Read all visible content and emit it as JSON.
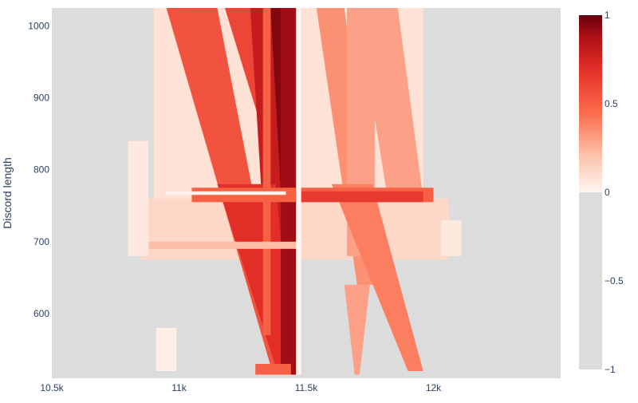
{
  "chart_data": {
    "type": "heatmap",
    "title": "",
    "xlabel": "",
    "ylabel": "Discord length",
    "x_range": [
      10500,
      12500
    ],
    "y_range": [
      510,
      1025
    ],
    "x_ticks": [
      {
        "value": 10500,
        "label": "10.5k"
      },
      {
        "value": 11000,
        "label": "11k"
      },
      {
        "value": 11500,
        "label": "11.5k"
      },
      {
        "value": 12000,
        "label": "12k"
      }
    ],
    "y_ticks": [
      {
        "value": 600,
        "label": "600"
      },
      {
        "value": 700,
        "label": "700"
      },
      {
        "value": 800,
        "label": "800"
      },
      {
        "value": 900,
        "label": "900"
      },
      {
        "value": 1000,
        "label": "1000"
      }
    ],
    "colorbar": {
      "range": [
        -1,
        1
      ],
      "ticks": [
        {
          "value": 1,
          "label": "1"
        },
        {
          "value": 0.5,
          "label": "0.5"
        },
        {
          "value": 0,
          "label": "0"
        },
        {
          "value": -0.5,
          "label": "−0.5"
        },
        {
          "value": -1,
          "label": "−1"
        }
      ],
      "negative_color": "#dcdcdc",
      "zero_color": "#fff5f0",
      "max_color": "#67000d"
    },
    "background_value": -1,
    "regions": [
      {
        "type": "rect",
        "x0": 10900,
        "x1": 11480,
        "y0": 680,
        "y1": 1025,
        "value": 0.08
      },
      {
        "type": "rect",
        "x0": 11480,
        "x1": 11960,
        "y0": 680,
        "y1": 1025,
        "value": 0.08
      },
      {
        "type": "rect",
        "x0": 10850,
        "x1": 12060,
        "y0": 675,
        "y1": 760,
        "value": 0.12
      },
      {
        "type": "poly",
        "points": [
          [
            10950,
            1025
          ],
          [
            11150,
            1025
          ],
          [
            11430,
            515
          ],
          [
            11370,
            515
          ]
        ],
        "value": 0.55
      },
      {
        "type": "poly",
        "points": [
          [
            11180,
            1025
          ],
          [
            11320,
            1025
          ],
          [
            11470,
            760
          ],
          [
            11410,
            760
          ]
        ],
        "value": 0.6
      },
      {
        "type": "poly",
        "points": [
          [
            11280,
            1025
          ],
          [
            11420,
            1025
          ],
          [
            11460,
            560
          ],
          [
            11360,
            560
          ]
        ],
        "value": 0.8
      },
      {
        "type": "poly",
        "points": [
          [
            11360,
            1025
          ],
          [
            11460,
            1025
          ],
          [
            11460,
            770
          ],
          [
            11400,
            770
          ]
        ],
        "value": 0.95
      },
      {
        "type": "poly",
        "points": [
          [
            11150,
            780
          ],
          [
            11380,
            780
          ],
          [
            11450,
            515
          ],
          [
            11390,
            515
          ]
        ],
        "value": 0.7
      },
      {
        "type": "rect",
        "x0": 11400,
        "x1": 11460,
        "y0": 515,
        "y1": 1025,
        "value": 0.9
      },
      {
        "type": "rect",
        "x0": 11330,
        "x1": 11360,
        "y0": 570,
        "y1": 1025,
        "value": 0.5
      },
      {
        "type": "poly",
        "points": [
          [
            11540,
            1025
          ],
          [
            11650,
            1025
          ],
          [
            11790,
            640
          ],
          [
            11700,
            640
          ]
        ],
        "value": 0.35
      },
      {
        "type": "rect",
        "x0": 11660,
        "x1": 11770,
        "y0": 680,
        "y1": 1025,
        "value": 0.3
      },
      {
        "type": "poly",
        "points": [
          [
            11700,
            1025
          ],
          [
            11860,
            1025
          ],
          [
            11960,
            760
          ],
          [
            11820,
            760
          ]
        ],
        "value": 0.3
      },
      {
        "type": "poly",
        "points": [
          [
            11600,
            780
          ],
          [
            11760,
            780
          ],
          [
            11960,
            520
          ],
          [
            11900,
            520
          ]
        ],
        "value": 0.4
      },
      {
        "type": "poly",
        "points": [
          [
            11650,
            640
          ],
          [
            11750,
            640
          ],
          [
            11710,
            515
          ],
          [
            11690,
            515
          ]
        ],
        "value": 0.3
      },
      {
        "type": "rect",
        "x0": 11050,
        "x1": 12000,
        "y0": 755,
        "y1": 775,
        "value": 0.5
      },
      {
        "type": "rect",
        "x0": 11480,
        "x1": 11960,
        "y0": 755,
        "y1": 770,
        "value": 0.65
      },
      {
        "type": "rect",
        "x0": 10880,
        "x1": 11470,
        "y0": 690,
        "y1": 700,
        "value": 0.22
      },
      {
        "type": "rect",
        "x0": 10950,
        "x1": 11420,
        "y0": 765,
        "y1": 770,
        "value": 0.02
      },
      {
        "type": "rect",
        "x0": 11460,
        "x1": 11480,
        "y0": 515,
        "y1": 1025,
        "value": 0.0
      },
      {
        "type": "rect",
        "x0": 10800,
        "x1": 10880,
        "y0": 680,
        "y1": 840,
        "value": 0.05
      },
      {
        "type": "rect",
        "x0": 12030,
        "x1": 12110,
        "y0": 680,
        "y1": 730,
        "value": 0.05
      },
      {
        "type": "rect",
        "x0": 10910,
        "x1": 10990,
        "y0": 520,
        "y1": 580,
        "value": 0.03
      },
      {
        "type": "rect",
        "x0": 11300,
        "x1": 11440,
        "y0": 515,
        "y1": 530,
        "value": 0.5
      }
    ]
  }
}
